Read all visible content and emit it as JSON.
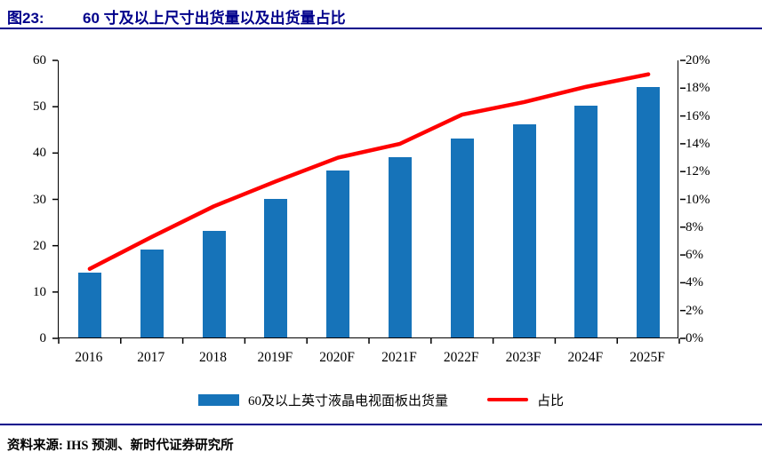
{
  "header": {
    "figure_label": "图23:",
    "title": "60 寸及以上尺寸出货量以及出货量占比"
  },
  "colors": {
    "accent": "#00008B",
    "bar": "#1673B9",
    "line": "#FF0000"
  },
  "chart_data": {
    "type": "bar",
    "subtype": "bar+line combo, dual axis",
    "categories": [
      "2016",
      "2017",
      "2018",
      "2019F",
      "2020F",
      "2021F",
      "2022F",
      "2023F",
      "2024F",
      "2025F"
    ],
    "series": [
      {
        "name": "60及以上英寸液晶电视面板出货量",
        "type": "bar",
        "axis": "left",
        "color": "#1673B9",
        "values": [
          14,
          19,
          23,
          30,
          36,
          39,
          43,
          46,
          50,
          54
        ]
      },
      {
        "name": "占比",
        "type": "line",
        "axis": "right",
        "color": "#FF0000",
        "values": [
          5,
          7.3,
          9.5,
          11.3,
          13,
          14,
          16.1,
          17,
          18.1,
          19
        ]
      }
    ],
    "left_axis": {
      "min": 0,
      "max": 60,
      "step": 10,
      "ticks": [
        "0",
        "10",
        "20",
        "30",
        "40",
        "50",
        "60"
      ]
    },
    "right_axis": {
      "min": 0,
      "max": 20,
      "step": 2,
      "ticks": [
        "0%",
        "2%",
        "4%",
        "6%",
        "8%",
        "10%",
        "12%",
        "14%",
        "16%",
        "18%",
        "20%"
      ]
    },
    "grid": false,
    "legend_position": "bottom",
    "title": "60 寸及以上尺寸出货量以及出货量占比",
    "xlabel": "",
    "ylabel_left": "",
    "ylabel_right": ""
  },
  "footer": {
    "source": "资料来源: IHS 预测、新时代证券研究所"
  }
}
